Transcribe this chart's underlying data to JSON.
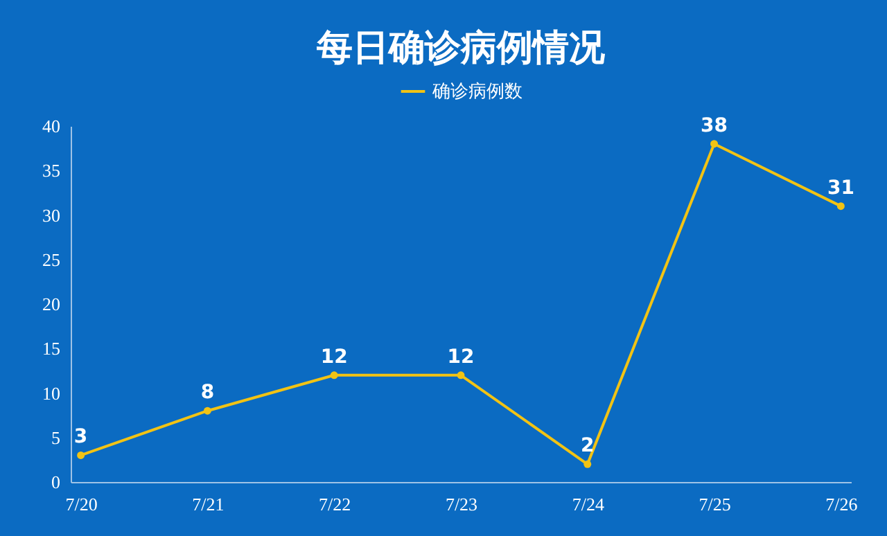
{
  "chart_data": {
    "type": "line",
    "title": "每日确诊病例情况",
    "categories": [
      "7/20",
      "7/21",
      "7/22",
      "7/23",
      "7/24",
      "7/25",
      "7/26"
    ],
    "series": [
      {
        "name": "确诊病例数",
        "color": "#f2c314",
        "values": [
          3,
          8,
          12,
          12,
          2,
          38,
          31
        ]
      }
    ],
    "ylim": [
      0,
      40
    ],
    "yticks": [
      0,
      5,
      10,
      15,
      20,
      25,
      30,
      35,
      40
    ],
    "grid": false,
    "legend": "top",
    "marker": "circle",
    "line_style": "solid",
    "data_labels": true
  }
}
